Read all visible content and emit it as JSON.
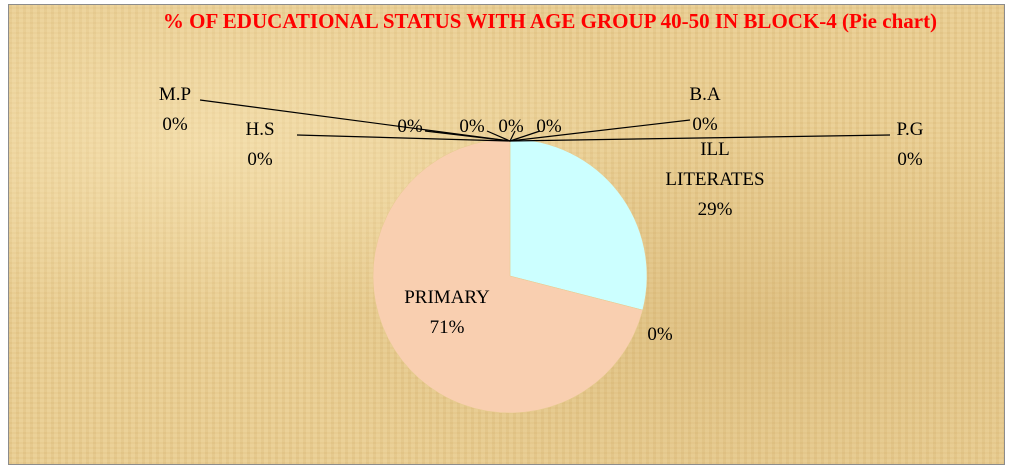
{
  "chart_data": {
    "type": "pie",
    "title": "% OF EDUCATIONAL STATUS WITH AGE GROUP 40-50 IN BLOCK-4 (Pie chart)",
    "categories": [
      "ILL LITERATES",
      "PRIMARY",
      null,
      "M.P",
      "H.S",
      null,
      null,
      null,
      null,
      "B.A",
      "P.G"
    ],
    "values": [
      29,
      71,
      0,
      0,
      0,
      0,
      0,
      0,
      0,
      0,
      0
    ],
    "value_labels": [
      "29%",
      "71%",
      "0%",
      "0%",
      "0%",
      "0%",
      "0%",
      "0%",
      "0%",
      "0%",
      "0%"
    ],
    "colors": [
      "#ccffff",
      "#f9cfb0",
      "#c0504d",
      "#9bbb59",
      "#8064a2",
      "#4bacc6",
      "#f79646",
      "#2c4d75",
      "#772c2a",
      "#5f7530",
      "#4d3b62"
    ]
  }
}
